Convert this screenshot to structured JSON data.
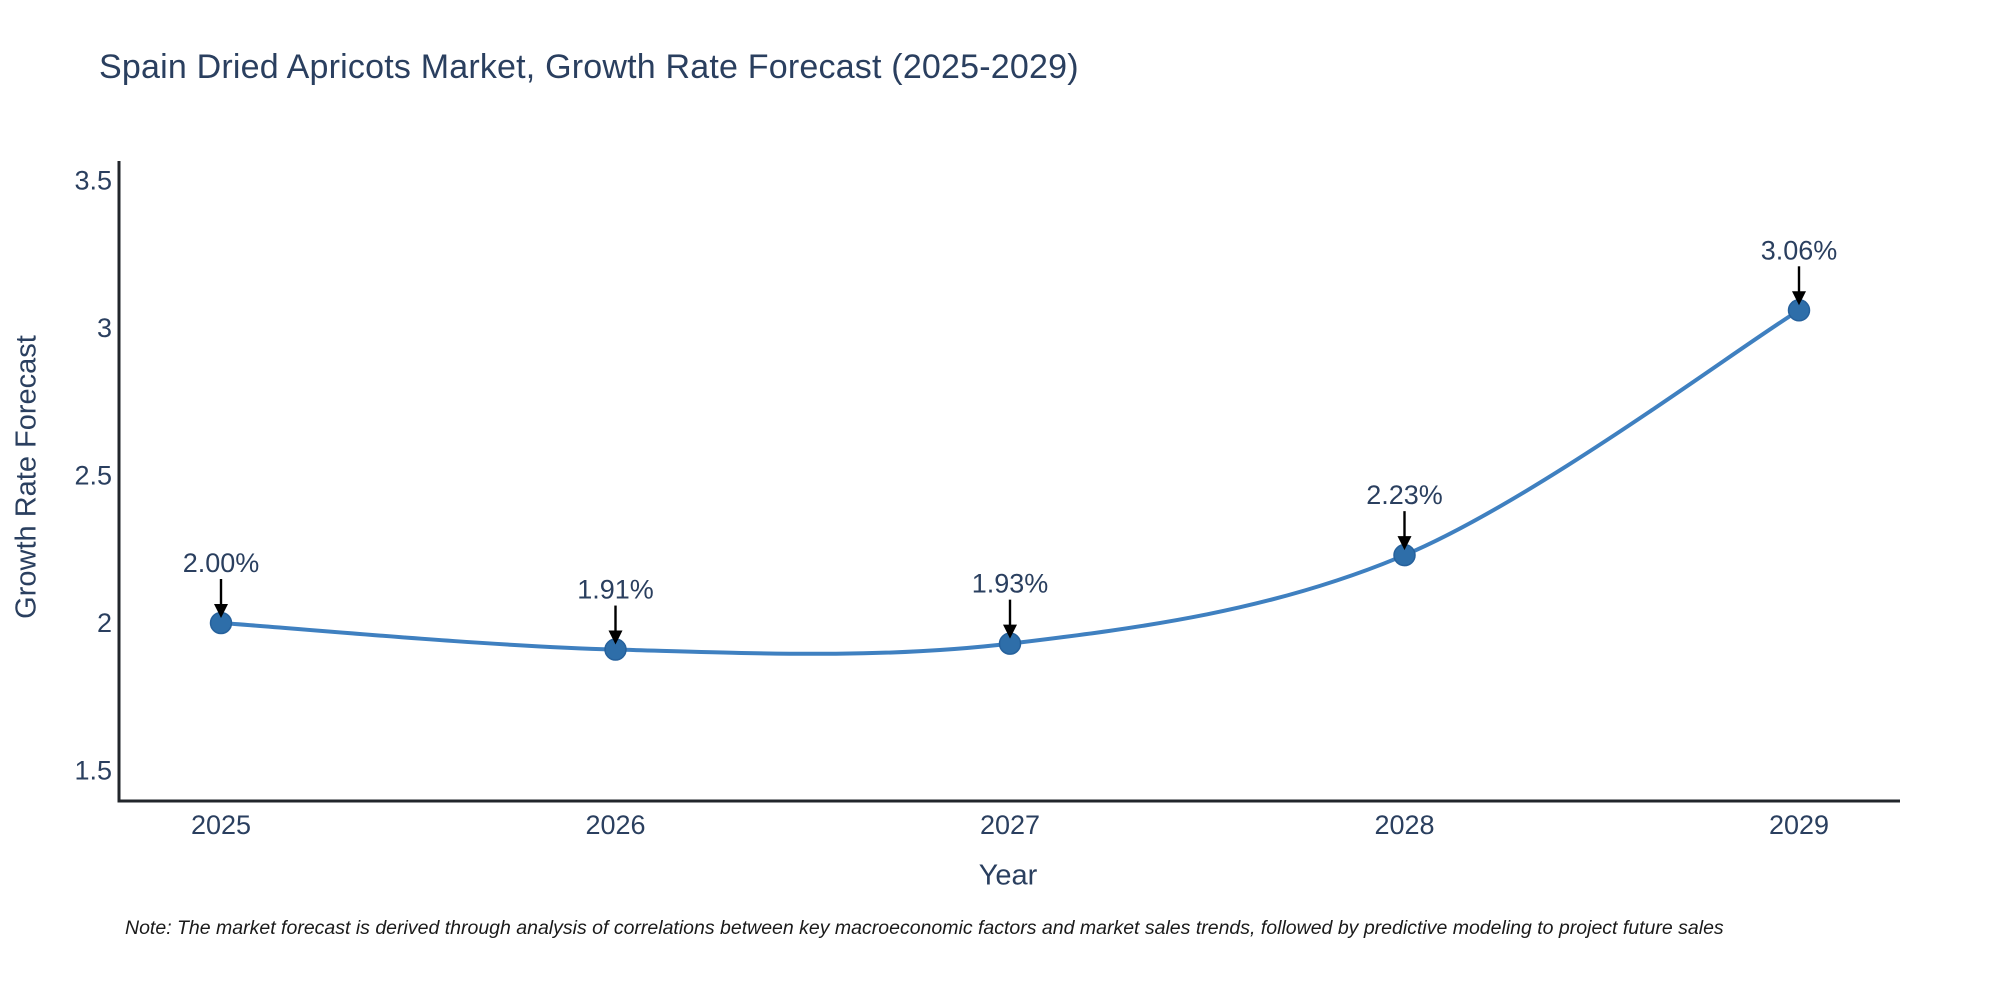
{
  "chart_data": {
    "type": "line",
    "title": "Spain Dried Apricots Market, Growth Rate Forecast (2025-2029)",
    "xlabel": "Year",
    "ylabel": "Growth Rate Forecast",
    "categories": [
      "2025",
      "2026",
      "2027",
      "2028",
      "2029"
    ],
    "values": [
      2.0,
      1.91,
      1.93,
      2.23,
      3.06
    ],
    "annotations": [
      "2.00%",
      "1.91%",
      "1.93%",
      "2.23%",
      "3.06%"
    ],
    "series_name": "Growth Rate Forecast",
    "ytick_labels": [
      "1.5",
      "2",
      "2.5",
      "3",
      "3.5"
    ],
    "ytick_values": [
      1.5,
      2,
      2.5,
      3,
      3.5
    ],
    "ylim": [
      1.4,
      3.57
    ],
    "grid": false,
    "legend_position": "none",
    "line_shape": "spline",
    "note": "Note: The market forecast is derived through analysis of correlations between key macroeconomic factors and market sales trends, followed by predictive modeling to project future sales",
    "colors": {
      "line": "#3f80c0",
      "marker": "#2e6ea9",
      "marker_edge": "#26619c",
      "text": "#2a3f5f",
      "axis_line": "#22262b",
      "arrow": "#000000",
      "note_text": "#1a1a1a",
      "background": "#ffffff"
    }
  }
}
